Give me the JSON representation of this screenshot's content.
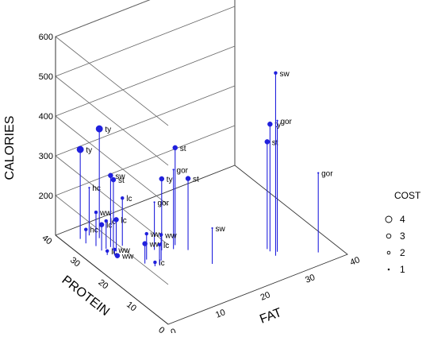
{
  "chart_data": {
    "type": "scatter",
    "subtype": "3d-needle-scatter",
    "xlabel": "FAT",
    "ylabel": "PROTEIN",
    "zlabel": "CALORIES",
    "xlim": [
      0,
      40
    ],
    "ylim": [
      0,
      40
    ],
    "zlim": [
      100,
      600
    ],
    "xticks": [
      "0",
      "10",
      "20",
      "30",
      "40"
    ],
    "yticks": [
      "0",
      "10",
      "20",
      "30",
      "40"
    ],
    "zticks": [
      "200",
      "300",
      "400",
      "500",
      "600"
    ],
    "grid": true,
    "legend": {
      "title": "COST",
      "position": "right",
      "entries": [
        "4",
        "3",
        "2",
        "1"
      ]
    },
    "colors": {
      "points": "#2020dd",
      "grid": "#666666",
      "text": "#000000"
    },
    "points": [
      {
        "label": "sw",
        "fat": 29,
        "protein": 8,
        "calories": 560,
        "cost": 2
      },
      {
        "label": "gor",
        "fat": 30,
        "protein": 9,
        "calories": 430,
        "cost": 1
      },
      {
        "label": "ty",
        "fat": 29,
        "protein": 10,
        "calories": 420,
        "cost": 3
      },
      {
        "label": "st",
        "fat": 29,
        "protein": 11,
        "calories": 370,
        "cost": 3
      },
      {
        "label": "gor",
        "fat": 36,
        "protein": 4,
        "calories": 300,
        "cost": 1
      },
      {
        "label": "st",
        "fat": 16,
        "protein": 23,
        "calories": 345,
        "cost": 3
      },
      {
        "label": "gor",
        "fat": 15,
        "protein": 22,
        "calories": 300,
        "cost": 1
      },
      {
        "label": "st",
        "fat": 17,
        "protein": 20,
        "calories": 280,
        "cost": 3
      },
      {
        "label": "sw",
        "fat": 18,
        "protein": 13,
        "calories": 190,
        "cost": 1
      },
      {
        "label": "ty",
        "fat": 6,
        "protein": 34,
        "calories": 375,
        "cost": 4
      },
      {
        "label": "ty",
        "fat": 3,
        "protein": 36,
        "calories": 325,
        "cost": 4
      },
      {
        "label": "sw",
        "fat": 6,
        "protein": 30,
        "calories": 280,
        "cost": 3
      },
      {
        "label": "st",
        "fat": 6,
        "protein": 29,
        "calories": 275,
        "cost": 3
      },
      {
        "label": "ty",
        "fat": 13,
        "protein": 23,
        "calories": 280,
        "cost": 3
      },
      {
        "label": "hc",
        "fat": 5,
        "protein": 36,
        "calories": 220,
        "cost": 1
      },
      {
        "label": "lc",
        "fat": 8,
        "protein": 29,
        "calories": 220,
        "cost": 2
      },
      {
        "label": "gor",
        "fat": 12,
        "protein": 24,
        "calories": 220,
        "cost": 1
      },
      {
        "label": "ww",
        "fat": 4,
        "protein": 32,
        "calories": 185,
        "cost": 2
      },
      {
        "label": "lc",
        "fat": 6,
        "protein": 28,
        "calories": 180,
        "cost": 3
      },
      {
        "label": "lc",
        "fat": 5,
        "protein": 30,
        "calories": 170,
        "cost": 2
      },
      {
        "label": "lc",
        "fat": 4,
        "protein": 30,
        "calories": 165,
        "cost": 3
      },
      {
        "label": "ww",
        "fat": 9,
        "protein": 22,
        "calories": 165,
        "cost": 2
      },
      {
        "label": "ww",
        "fat": 11,
        "protein": 20,
        "calories": 165,
        "cost": 2
      },
      {
        "label": "ww",
        "fat": 8,
        "protein": 21,
        "calories": 150,
        "cost": 3
      },
      {
        "label": "lc",
        "fat": 10,
        "protein": 19,
        "calories": 150,
        "cost": 2
      },
      {
        "label": "hc",
        "fat": 3,
        "protein": 34,
        "calories": 135,
        "cost": 2
      },
      {
        "label": "lc",
        "fat": 9,
        "protein": 19,
        "calories": 110,
        "cost": 2
      },
      {
        "label": "ww",
        "fat": 5,
        "protein": 27,
        "calories": 115,
        "cost": 2
      },
      {
        "label": "ww",
        "fat": 5,
        "protein": 26,
        "calories": 105,
        "cost": 3
      },
      {
        "label": "lc",
        "fat": 4,
        "protein": 28,
        "calories": 110,
        "cost": 2
      }
    ]
  }
}
